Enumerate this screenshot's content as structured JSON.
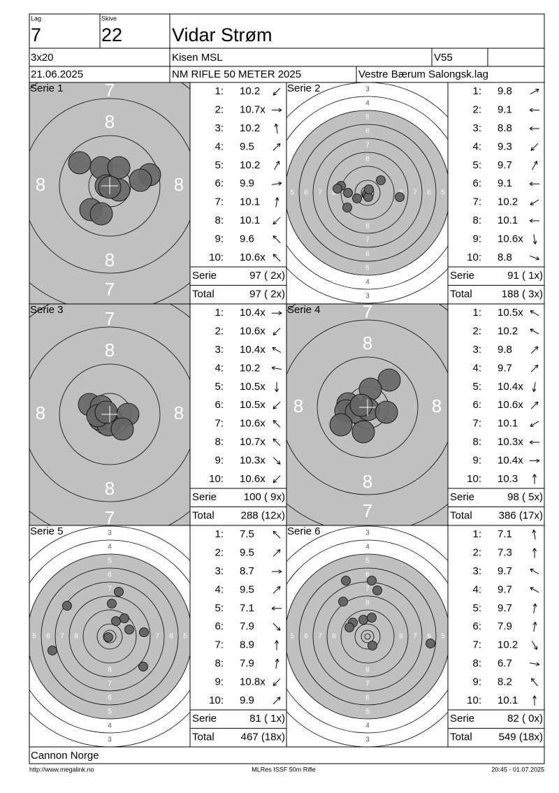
{
  "header": {
    "lag_label": "Lag",
    "lag": "7",
    "skive_label": "Skive",
    "skive": "22",
    "name": "Vidar Strøm",
    "program": "3x20",
    "range": "Kisen MSL",
    "class": "V55",
    "date": "21.06.2025",
    "competition": "NM RIFLE 50 METER 2025",
    "club": "Vestre Bærum Salongsk.lag"
  },
  "series": [
    {
      "title": "Serie 1",
      "target_labels": [
        "7",
        "8"
      ],
      "shots": [
        {
          "number": "1:",
          "score": "10.2"
        },
        {
          "number": "2:",
          "score": "10.7x"
        },
        {
          "number": "3:",
          "score": "10.2"
        },
        {
          "number": "4:",
          "score": "9.5"
        },
        {
          "number": "5:",
          "score": "10.2"
        },
        {
          "number": "6:",
          "score": "9.9"
        },
        {
          "number": "7:",
          "score": "10.1"
        },
        {
          "number": "8:",
          "score": "10.1"
        },
        {
          "number": "9:",
          "score": "9.6"
        },
        {
          "number": "10:",
          "score": "10.6x"
        }
      ],
      "serie_label": "Serie",
      "serie_score": "97 ( 2x)",
      "total_label": "Total",
      "total_score": "97 ( 2x)"
    },
    {
      "title": "Serie 2",
      "target_labels": [
        "3",
        "4",
        "5",
        "6",
        "7",
        "8"
      ],
      "shots": [
        {
          "number": "1:",
          "score": "9.8"
        },
        {
          "number": "2:",
          "score": "9.1"
        },
        {
          "number": "3:",
          "score": "8.8"
        },
        {
          "number": "4:",
          "score": "9.3"
        },
        {
          "number": "5:",
          "score": "9.7"
        },
        {
          "number": "6:",
          "score": "9.1"
        },
        {
          "number": "7:",
          "score": "10.2"
        },
        {
          "number": "8:",
          "score": "10.1"
        },
        {
          "number": "9:",
          "score": "10.6x"
        },
        {
          "number": "10:",
          "score": "8.8"
        }
      ],
      "serie_label": "Serie",
      "serie_score": "91 ( 1x)",
      "total_label": "Total",
      "total_score": "188 ( 3x)"
    },
    {
      "title": "Serie 3",
      "target_labels": [
        "7",
        "8"
      ],
      "shots": [
        {
          "number": "1:",
          "score": "10.4x"
        },
        {
          "number": "2:",
          "score": "10.6x"
        },
        {
          "number": "3:",
          "score": "10.4x"
        },
        {
          "number": "4:",
          "score": "10.2"
        },
        {
          "number": "5:",
          "score": "10.5x"
        },
        {
          "number": "6:",
          "score": "10.5x"
        },
        {
          "number": "7:",
          "score": "10.6x"
        },
        {
          "number": "8:",
          "score": "10.7x"
        },
        {
          "number": "9:",
          "score": "10.3x"
        },
        {
          "number": "10:",
          "score": "10.6x"
        }
      ],
      "serie_label": "Serie",
      "serie_score": "100 ( 9x)",
      "total_label": "Total",
      "total_score": "288 (12x)"
    },
    {
      "title": "Serie 4",
      "target_labels": [
        "7",
        "8"
      ],
      "shots": [
        {
          "number": "1:",
          "score": "10.5x"
        },
        {
          "number": "2:",
          "score": "10.2"
        },
        {
          "number": "3:",
          "score": "9.8"
        },
        {
          "number": "4:",
          "score": "9.7"
        },
        {
          "number": "5:",
          "score": "10.4x"
        },
        {
          "number": "6:",
          "score": "10.6x"
        },
        {
          "number": "7:",
          "score": "10.1"
        },
        {
          "number": "8:",
          "score": "10.3x"
        },
        {
          "number": "9:",
          "score": "10.4x"
        },
        {
          "number": "10:",
          "score": "10.3"
        }
      ],
      "serie_label": "Serie",
      "serie_score": "98 ( 5x)",
      "total_label": "Total",
      "total_score": "386 (17x)"
    },
    {
      "title": "Serie 5",
      "target_labels": [
        "3",
        "4",
        "5",
        "6",
        "7",
        "8"
      ],
      "shots": [
        {
          "number": "1:",
          "score": "7.5"
        },
        {
          "number": "2:",
          "score": "9.5"
        },
        {
          "number": "3:",
          "score": "8.7"
        },
        {
          "number": "4:",
          "score": "9.5"
        },
        {
          "number": "5:",
          "score": "7.1"
        },
        {
          "number": "6:",
          "score": "7.9"
        },
        {
          "number": "7:",
          "score": "8.9"
        },
        {
          "number": "8:",
          "score": "7.9"
        },
        {
          "number": "9:",
          "score": "10.8x"
        },
        {
          "number": "10:",
          "score": "9.9"
        }
      ],
      "serie_label": "Serie",
      "serie_score": "81 ( 1x)",
      "total_label": "Total",
      "total_score": "467 (18x)"
    },
    {
      "title": "Serie 6",
      "target_labels": [
        "3",
        "4",
        "5",
        "6",
        "7",
        "8"
      ],
      "shots": [
        {
          "number": "1:",
          "score": "7.1"
        },
        {
          "number": "2:",
          "score": "7.3"
        },
        {
          "number": "3:",
          "score": "9.7"
        },
        {
          "number": "4:",
          "score": "9.7"
        },
        {
          "number": "5:",
          "score": "9.7"
        },
        {
          "number": "6:",
          "score": "7.9"
        },
        {
          "number": "7:",
          "score": "10.2"
        },
        {
          "number": "8:",
          "score": "6.7"
        },
        {
          "number": "9:",
          "score": "8.2"
        },
        {
          "number": "10:",
          "score": "10.1"
        }
      ],
      "serie_label": "Serie",
      "serie_score": "82 ( 0x)",
      "total_label": "Total",
      "total_score": "549 (18x)"
    }
  ],
  "footer": {
    "sponsor": "Cannon Norge",
    "url": "http://www.megalink.no",
    "software": "MLRes ISSF 50m Rifle",
    "timestamp": "20:45 - 01.07.2025"
  }
}
